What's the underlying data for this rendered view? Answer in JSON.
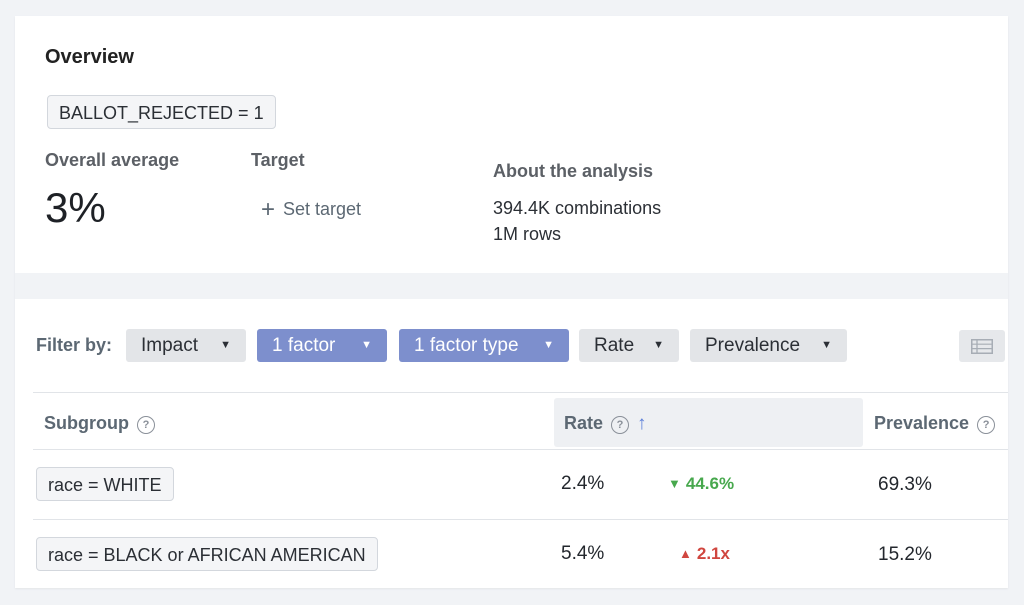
{
  "overview": {
    "title": "Overview",
    "condition_chip": "BALLOT_REJECTED = 1",
    "overall_average_label": "Overall average",
    "overall_average_value": "3%",
    "target_label": "Target",
    "set_target_label": "Set target",
    "about_label": "About the analysis",
    "combinations": "394.4K combinations",
    "rows": "1M rows"
  },
  "filters": {
    "label": "Filter by:",
    "buttons": [
      {
        "label": "Impact",
        "active": false
      },
      {
        "label": "1 factor",
        "active": true
      },
      {
        "label": "1 factor type",
        "active": true
      },
      {
        "label": "Rate",
        "active": false
      },
      {
        "label": "Prevalence",
        "active": false
      }
    ]
  },
  "table": {
    "columns": {
      "subgroup": "Subgroup",
      "rate": "Rate",
      "prevalence": "Prevalence"
    },
    "rows": [
      {
        "subgroup": "race = WHITE",
        "rate": "2.4%",
        "delta": "44.6%",
        "direction": "down",
        "prevalence": "69.3%"
      },
      {
        "subgroup": "race = BLACK or AFRICAN AMERICAN",
        "rate": "5.4%",
        "delta": "2.1x",
        "direction": "up",
        "prevalence": "15.2%"
      }
    ]
  },
  "colors": {
    "active_filter": "#7d8fcd",
    "decrease": "#47a84d",
    "increase": "#d0463f",
    "sort_arrow": "#5b7fd9"
  },
  "icons": {
    "plus": "plus-icon",
    "caret": "caret-down-icon",
    "help": "help-circle-icon",
    "sort": "arrow-up-icon",
    "view": "table-view-icon"
  }
}
